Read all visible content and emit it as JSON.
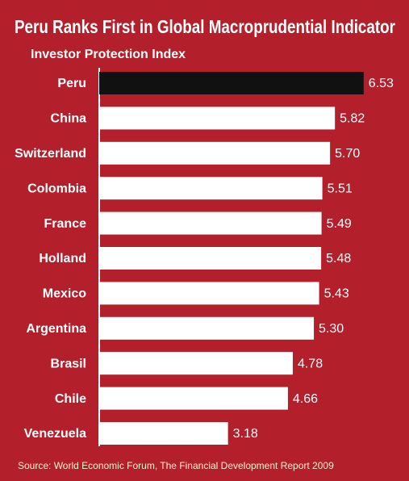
{
  "chart_data": {
    "type": "bar",
    "title": "Peru Ranks First  in Global Macroprudential Indicator",
    "subtitle": "Investor Protection Index",
    "categories": [
      "Peru",
      "China",
      "Switzerland",
      "Colombia",
      "France",
      "Holland",
      "Mexico",
      "Argentina",
      "Brasil",
      "Chile",
      "Venezuela"
    ],
    "values": [
      6.53,
      5.82,
      5.7,
      5.51,
      5.49,
      5.48,
      5.43,
      5.3,
      4.78,
      4.66,
      3.18
    ],
    "value_labels": [
      "6.53",
      "5.82",
      "5.70",
      "5.51",
      "5.49",
      "5.48",
      "5.43",
      "5.30",
      "4.78",
      "4.66",
      "3.18"
    ],
    "colors": [
      "#111111",
      "#ffffff",
      "#ffffff",
      "#ffffff",
      "#ffffff",
      "#ffffff",
      "#ffffff",
      "#ffffff",
      "#ffffff",
      "#ffffff",
      "#ffffff"
    ],
    "source": "Source: World Economic Forum, The Financial Development Report 2009"
  }
}
